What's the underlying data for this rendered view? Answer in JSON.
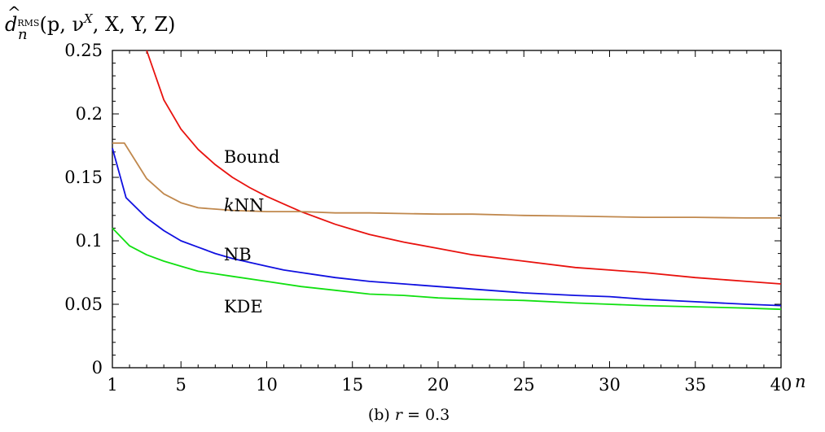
{
  "chart_data": {
    "type": "line",
    "ylabel": {
      "hat": "^",
      "base": "d",
      "sub": "n",
      "sup": "RMS",
      "args": "(p, ν",
      "args_sup": "X",
      "args_end": ", X, Y, Z)"
    },
    "xlabel": "n",
    "caption": {
      "prefix": "(b) ",
      "var": "r",
      "rest": " = 0.3"
    },
    "xlim": [
      1,
      40
    ],
    "ylim": [
      0,
      0.25
    ],
    "x_ticks": [
      1,
      5,
      10,
      15,
      20,
      25,
      30,
      35,
      40
    ],
    "x_tick_labels": [
      "1",
      "5",
      "10",
      "15",
      "20",
      "25",
      "30",
      "35",
      "40"
    ],
    "y_ticks": [
      0,
      0.05,
      0.1,
      0.15,
      0.2,
      0.25
    ],
    "y_tick_labels": [
      "0",
      "0.05",
      "0.1",
      "0.15",
      "0.2",
      "0.25"
    ],
    "grid": false,
    "series": [
      {
        "name": "Bound",
        "color": "#e8120e",
        "label_at": [
          7.5,
          0.166
        ],
        "points": [
          [
            3,
            0.25
          ],
          [
            4,
            0.211
          ],
          [
            5,
            0.188
          ],
          [
            6,
            0.172
          ],
          [
            7,
            0.16
          ],
          [
            8,
            0.15
          ],
          [
            9,
            0.142
          ],
          [
            10,
            0.135
          ],
          [
            11,
            0.129
          ],
          [
            12,
            0.123
          ],
          [
            13,
            0.118
          ],
          [
            14,
            0.113
          ],
          [
            15,
            0.109
          ],
          [
            16,
            0.105
          ],
          [
            18,
            0.099
          ],
          [
            20,
            0.094
          ],
          [
            22,
            0.089
          ],
          [
            25,
            0.084
          ],
          [
            28,
            0.079
          ],
          [
            30,
            0.077
          ],
          [
            32,
            0.075
          ],
          [
            35,
            0.071
          ],
          [
            38,
            0.068
          ],
          [
            40,
            0.066
          ]
        ]
      },
      {
        "name": "kNN",
        "name_italic_prefix": "k",
        "name_rest": "NN",
        "color": "#c0884d",
        "label_at": [
          7.5,
          0.128
        ],
        "points": [
          [
            1,
            0.177
          ],
          [
            1.7,
            0.177
          ],
          [
            3,
            0.149
          ],
          [
            4,
            0.137
          ],
          [
            5,
            0.13
          ],
          [
            6,
            0.126
          ],
          [
            7,
            0.125
          ],
          [
            8,
            0.124
          ],
          [
            10,
            0.123
          ],
          [
            12,
            0.123
          ],
          [
            14,
            0.122
          ],
          [
            16,
            0.122
          ],
          [
            18,
            0.1215
          ],
          [
            20,
            0.121
          ],
          [
            22,
            0.121
          ],
          [
            25,
            0.12
          ],
          [
            28,
            0.1195
          ],
          [
            30,
            0.119
          ],
          [
            32,
            0.1185
          ],
          [
            35,
            0.1185
          ],
          [
            38,
            0.118
          ],
          [
            40,
            0.118
          ]
        ]
      },
      {
        "name": "NB",
        "color": "#1010e0",
        "label_at": [
          7.5,
          0.089
        ],
        "points": [
          [
            1,
            0.173
          ],
          [
            1.8,
            0.134
          ],
          [
            3,
            0.118
          ],
          [
            4,
            0.108
          ],
          [
            5,
            0.1
          ],
          [
            6,
            0.095
          ],
          [
            7,
            0.09
          ],
          [
            8,
            0.086
          ],
          [
            9,
            0.083
          ],
          [
            10,
            0.08
          ],
          [
            11,
            0.077
          ],
          [
            12,
            0.075
          ],
          [
            14,
            0.071
          ],
          [
            16,
            0.068
          ],
          [
            18,
            0.066
          ],
          [
            20,
            0.064
          ],
          [
            22,
            0.062
          ],
          [
            25,
            0.059
          ],
          [
            28,
            0.057
          ],
          [
            30,
            0.056
          ],
          [
            32,
            0.054
          ],
          [
            35,
            0.052
          ],
          [
            38,
            0.05
          ],
          [
            40,
            0.049
          ]
        ]
      },
      {
        "name": "KDE",
        "color": "#11e011",
        "label_at": [
          7.5,
          0.048
        ],
        "points": [
          [
            1,
            0.11
          ],
          [
            2,
            0.096
          ],
          [
            3,
            0.089
          ],
          [
            4,
            0.084
          ],
          [
            5,
            0.08
          ],
          [
            6,
            0.076
          ],
          [
            8,
            0.072
          ],
          [
            10,
            0.068
          ],
          [
            12,
            0.064
          ],
          [
            14,
            0.061
          ],
          [
            16,
            0.058
          ],
          [
            18,
            0.057
          ],
          [
            20,
            0.055
          ],
          [
            22,
            0.054
          ],
          [
            25,
            0.053
          ],
          [
            28,
            0.051
          ],
          [
            30,
            0.05
          ],
          [
            32,
            0.049
          ],
          [
            35,
            0.048
          ],
          [
            38,
            0.047
          ],
          [
            40,
            0.046
          ]
        ]
      }
    ]
  }
}
